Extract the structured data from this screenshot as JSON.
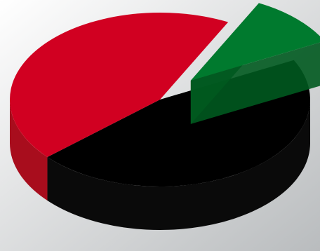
{
  "chart_data": {
    "type": "pie",
    "title": "",
    "style": "3d-exploded",
    "background": {
      "from": "#ffffff",
      "to": "#b9bcbe"
    },
    "slices": [
      {
        "label": "",
        "value": 46,
        "color": "#000000",
        "side": "#0a0a0a"
      },
      {
        "label": "",
        "value": 44,
        "color": "#d10021",
        "side": "#a80d1d"
      },
      {
        "label": "",
        "value": 10,
        "color": "#007a2e",
        "side": "#00591f",
        "exploded": true
      }
    ]
  }
}
